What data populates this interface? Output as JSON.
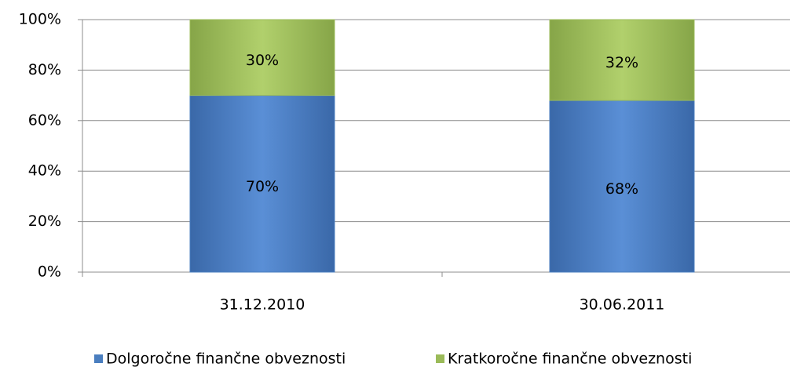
{
  "chart_data": {
    "type": "stacked_bar",
    "categories": [
      "31.12.2010",
      "30.06.2011"
    ],
    "series": [
      {
        "name": "Dolgoročne finančne obveznosti",
        "color": "#4a7ebf",
        "values": [
          70,
          68
        ],
        "value_labels": [
          "70%",
          "68%"
        ]
      },
      {
        "name": "Kratkoročne finančne obveznosti",
        "color": "#9bbb59",
        "values": [
          30,
          32
        ],
        "value_labels": [
          "30%",
          "32%"
        ]
      }
    ],
    "ylim": [
      0,
      100
    ],
    "yticks": [
      {
        "value": 0,
        "label": "0%"
      },
      {
        "value": 20,
        "label": "20%"
      },
      {
        "value": 40,
        "label": "40%"
      },
      {
        "value": 60,
        "label": "60%"
      },
      {
        "value": 80,
        "label": "80%"
      },
      {
        "value": 100,
        "label": "100%"
      }
    ],
    "grid": true,
    "legend": "bottom"
  }
}
